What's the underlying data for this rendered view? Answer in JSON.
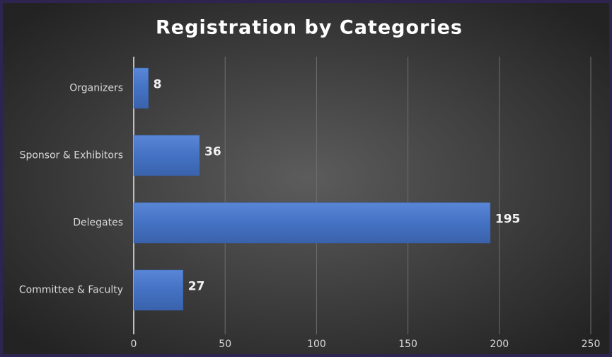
{
  "chart_data": {
    "type": "bar",
    "orientation": "horizontal",
    "title": "Registration by Categories",
    "categories": [
      "Organizers",
      "Sponsor & Exhibitors",
      "Delegates",
      "Committee & Faculty"
    ],
    "values": [
      8,
      36,
      195,
      27
    ],
    "color": "#4472c4",
    "xlim": [
      0,
      250
    ],
    "xticks": [
      0,
      50,
      100,
      150,
      200,
      250
    ],
    "grid": true
  }
}
